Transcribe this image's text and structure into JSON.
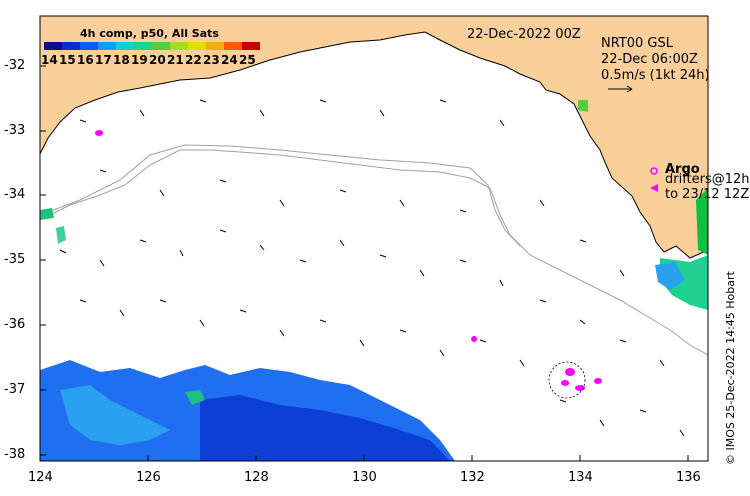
{
  "colorbar": {
    "title": "4h comp, p50, All Sats",
    "labels": [
      "14",
      "15",
      "16",
      "17",
      "18",
      "19",
      "20",
      "21",
      "22",
      "23",
      "24",
      "25"
    ],
    "colors": [
      "#0b0b8c",
      "#0b2ad0",
      "#0a5cf0",
      "#0aa0f0",
      "#10d0d0",
      "#20d090",
      "#50d040",
      "#a0e020",
      "#e0e000",
      "#f0b000",
      "#f06000",
      "#c00000"
    ]
  },
  "date_label": "22-Dec-2022 00Z",
  "nrt": {
    "line1": "NRT00 GSL",
    "line2": "22-Dec 06:00Z",
    "line3": "0.5m/s (1kt 24h)"
  },
  "legend": {
    "argo": "Argo",
    "drifters1": "drifters@12h",
    "drifters2": "to 23/12 12Z"
  },
  "credit": "© IMOS 25-Dec-2022 14:45 Hobart",
  "axes": {
    "x_ticks": [
      "124",
      "126",
      "128",
      "130",
      "132",
      "134",
      "136"
    ],
    "y_ticks": [
      "-32",
      "-33",
      "-34",
      "-35",
      "-36",
      "-37",
      "-38"
    ]
  },
  "colors": {
    "land": "#fbcf9a",
    "ocean": "#ffffff",
    "contour": "#a0a0a0",
    "drifter": "#ff00ff"
  }
}
